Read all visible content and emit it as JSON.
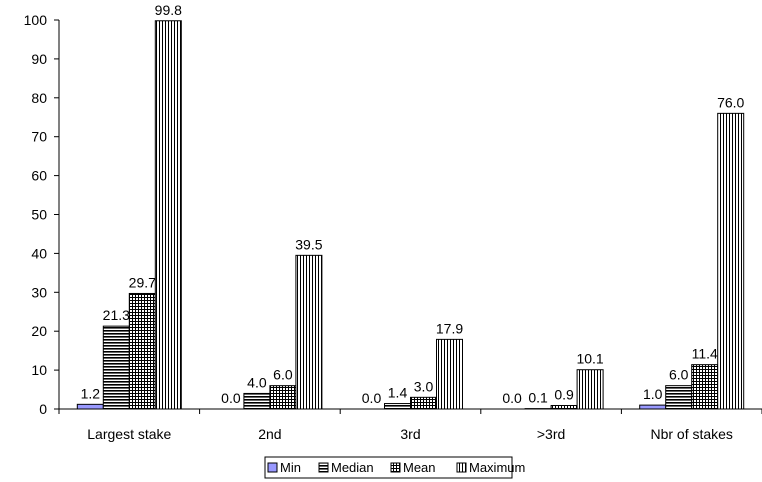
{
  "chart_data": {
    "type": "bar",
    "categories": [
      "Largest stake",
      "2nd",
      "3rd",
      ">3rd",
      "Nbr of stakes"
    ],
    "series": [
      {
        "name": "Min",
        "values": [
          1.2,
          0.0,
          0.0,
          0.0,
          1.0
        ],
        "labels": [
          "1.2",
          "0.0",
          "0.0",
          "0.0",
          "1.0"
        ],
        "pattern": "solid",
        "color": "#9999ff"
      },
      {
        "name": "Median",
        "values": [
          21.3,
          4.0,
          1.4,
          0.1,
          6.0
        ],
        "labels": [
          "21.3",
          "4.0",
          "1.4",
          "0.1",
          "6.0"
        ],
        "pattern": "horizontal-lines",
        "color": "#000000"
      },
      {
        "name": "Mean",
        "values": [
          29.7,
          6.0,
          3.0,
          0.9,
          11.4
        ],
        "labels": [
          "29.7",
          "6.0",
          "3.0",
          "0.9",
          "11.4"
        ],
        "pattern": "grid",
        "color": "#000000"
      },
      {
        "name": "Maximum",
        "values": [
          99.8,
          39.5,
          17.9,
          10.1,
          76.0
        ],
        "labels": [
          "99.8",
          "39.5",
          "17.9",
          "10.1",
          "76.0"
        ],
        "pattern": "vertical-lines",
        "color": "#000000"
      }
    ],
    "ylim": [
      0,
      100
    ],
    "yticks": [
      0,
      10,
      20,
      30,
      40,
      50,
      60,
      70,
      80,
      90,
      100
    ],
    "grid": false,
    "legend": "bottom"
  }
}
